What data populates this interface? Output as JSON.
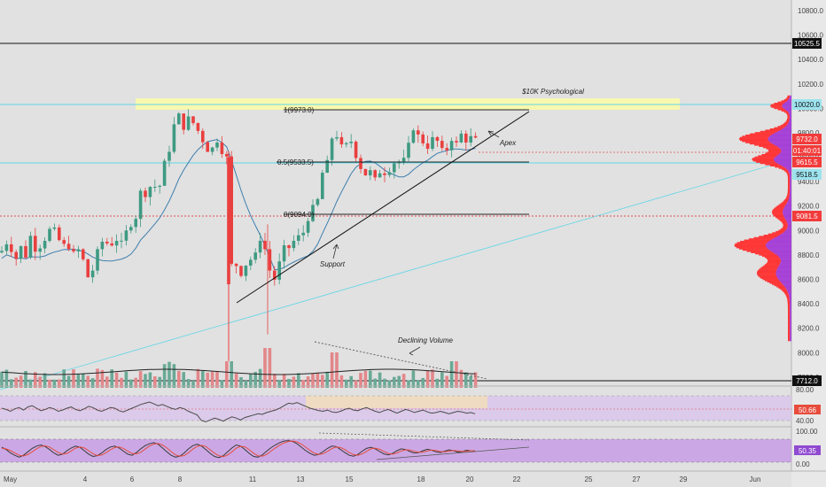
{
  "chart_data": {
    "type": "candlestick",
    "instrument": "BTC",
    "colors": {
      "up": "#3e9a82",
      "down": "#ea3f3f",
      "ma": "#3f7fae",
      "support_line": "#000000",
      "background": "#e1e1e1",
      "axis_bg": "#e8e8e8",
      "resistance_zone": "#ffff9e",
      "cyan_line": "#5fd6e6",
      "red_dotted": "#e34a4a",
      "profile_red": "#ff2e2e",
      "profile_purple": "#a23ad6",
      "rsi_band": "#d9c6ea",
      "stoch_band": "#c69ae6",
      "rsi_line": "#4a4a4a",
      "stoch_k": "#3a3a3a",
      "stoch_d": "#e74c3c",
      "volume_up": "#6aa996",
      "volume_down": "#e3878a"
    },
    "price_axis": {
      "ticks": [
        "10800.0",
        "10600.0",
        "10400.0",
        "10200.0",
        "10000.0",
        "9800.0",
        "9600.0",
        "9400.0",
        "9200.0",
        "9000.0",
        "8800.0",
        "8600.0",
        "8400.0",
        "8200.0",
        "8000.0",
        "7800.0"
      ],
      "ylim": [
        7680,
        10900
      ]
    },
    "x_axis": {
      "ticks": [
        "May",
        "4",
        "6",
        "8",
        "11",
        "13",
        "15",
        "18",
        "20",
        "22",
        "25",
        "27",
        "29",
        "Jun"
      ]
    },
    "price_labels": [
      {
        "text": "10525.5",
        "value": 10525.5,
        "style": "dark"
      },
      {
        "text": "10020.0",
        "value": 10020,
        "style": "cyan"
      },
      {
        "text": "9732.0",
        "value": 9732,
        "style": "red"
      },
      {
        "text": "01:40:01",
        "value": 9670,
        "style": "red"
      },
      {
        "text": "9615.5",
        "value": 9615.5,
        "style": "red"
      },
      {
        "text": "9518.5",
        "value": 9518.5,
        "style": "cyan"
      },
      {
        "text": "9081.5",
        "value": 9081.5,
        "style": "red"
      },
      {
        "text": "7712.0",
        "value": 7712,
        "style": "dark"
      }
    ],
    "horizontal_lines": [
      {
        "value": 10525.5,
        "style": "solid-black"
      },
      {
        "value": 10020,
        "style": "cyan"
      },
      {
        "value": 9615.5,
        "style": "cyan"
      },
      {
        "value": 9081.5,
        "style": "red-dotted"
      },
      {
        "value": 9670,
        "style": "red-dotted"
      },
      {
        "value": 7712,
        "style": "solid-black"
      }
    ],
    "resistance_zone": [
      9960,
      10080
    ],
    "fibonacci": [
      {
        "label": "1(9973.0)",
        "value": 9973
      },
      {
        "label": "0.5(9533.5)",
        "value": 9533.5
      },
      {
        "label": "0(9094.0)",
        "value": 9094
      }
    ],
    "annotations": [
      "$10K Psychological",
      "Apex",
      "Support",
      "Declining Volume"
    ],
    "rsi": {
      "ticks": [
        "80.00",
        "40.00"
      ],
      "current_label": "50.66",
      "values": [
        60,
        58,
        55,
        59,
        61,
        57,
        62,
        64,
        60,
        56,
        58,
        61,
        59,
        55,
        57,
        60,
        62,
        58,
        56,
        59,
        63,
        61,
        57,
        55,
        58,
        61,
        60,
        56,
        54,
        57,
        60,
        63,
        66,
        68,
        70,
        67,
        64,
        66,
        63,
        60,
        58,
        61,
        59,
        55,
        52,
        49,
        40,
        38,
        41,
        44,
        42,
        39,
        43,
        46,
        44,
        41,
        45,
        47,
        49,
        51,
        50,
        53,
        55,
        57,
        60,
        64,
        68,
        67,
        69,
        66,
        63,
        60,
        58,
        56,
        55,
        57,
        54,
        53,
        55,
        58,
        60,
        57,
        56,
        59,
        61,
        58,
        55,
        53,
        56,
        58,
        55,
        52,
        55,
        58,
        56,
        53,
        55,
        57,
        54,
        52,
        53,
        55,
        53,
        51,
        53,
        55,
        54,
        52,
        53,
        51
      ]
    },
    "stoch": {
      "ticks": [
        "100.00",
        "0.00"
      ],
      "current_label": "50.35",
      "k_values": [
        65,
        55,
        40,
        30,
        22,
        30,
        45,
        60,
        70,
        75,
        68,
        55,
        40,
        30,
        35,
        50,
        62,
        70,
        65,
        50,
        35,
        25,
        28,
        40,
        55,
        66,
        70,
        62,
        48,
        35,
        30,
        42,
        58,
        72,
        80,
        85,
        78,
        62,
        45,
        30,
        22,
        26,
        40,
        58,
        72,
        78,
        70,
        55,
        38,
        25,
        20,
        28,
        45,
        62,
        75,
        70,
        55,
        38,
        25,
        22,
        32,
        48,
        63,
        75,
        85,
        92,
        94,
        90,
        80,
        65,
        50,
        38,
        30,
        34,
        46,
        60,
        70,
        68,
        55,
        42,
        30,
        26,
        34,
        48,
        60,
        65,
        58,
        46,
        36,
        32,
        38,
        50,
        58,
        55,
        46,
        40,
        42,
        50,
        56,
        52,
        45,
        42,
        48,
        54,
        50,
        44,
        46,
        52,
        50,
        48
      ],
      "d_values": [
        60,
        58,
        50,
        40,
        30,
        27,
        33,
        45,
        58,
        68,
        71,
        66,
        54,
        42,
        35,
        38,
        49,
        61,
        66,
        62,
        50,
        37,
        29,
        31,
        41,
        54,
        64,
        66,
        60,
        48,
        38,
        36,
        43,
        57,
        70,
        79,
        81,
        75,
        62,
        46,
        32,
        26,
        29,
        41,
        57,
        69,
        73,
        68,
        54,
        39,
        28,
        24,
        31,
        45,
        61,
        69,
        67,
        54,
        39,
        28,
        26,
        34,
        48,
        62,
        74,
        84,
        90,
        92,
        88,
        78,
        65,
        51,
        39,
        34,
        37,
        47,
        59,
        66,
        64,
        55,
        42,
        33,
        30,
        36,
        47,
        58,
        61,
        56,
        47,
        38,
        35,
        40,
        49,
        54,
        53,
        47,
        43,
        44,
        49,
        53,
        51,
        46,
        45,
        48,
        51,
        49,
        47,
        47,
        50,
        50
      ]
    }
  }
}
